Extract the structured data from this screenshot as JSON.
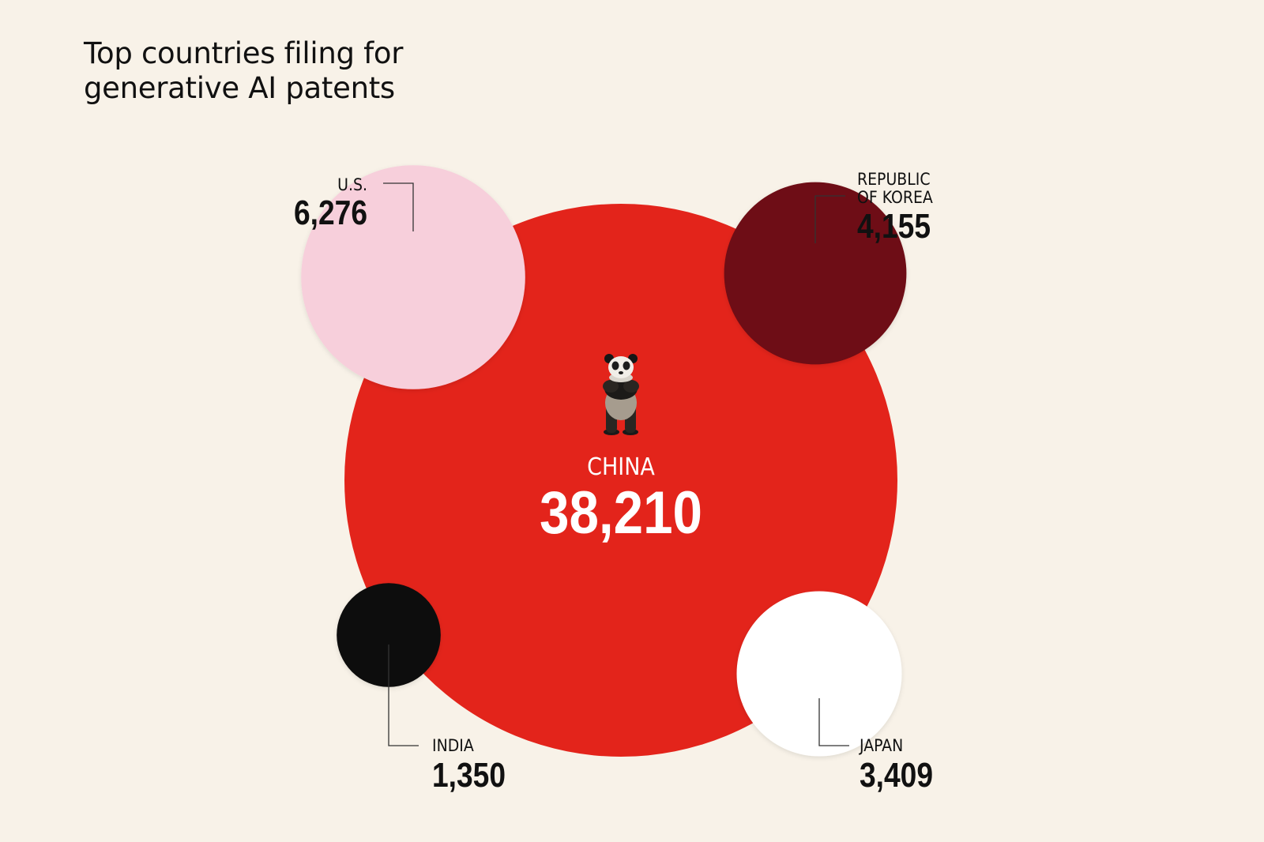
{
  "chart_data": {
    "type": "bubble",
    "title_lines": [
      "Top countries filing for",
      "generative AI patents"
    ],
    "series": [
      {
        "name": "CHINA",
        "name_lines": [
          "CHINA"
        ],
        "value": 38210,
        "value_label": "38,210",
        "color": "#e3241b",
        "icon": "panda-icon"
      },
      {
        "name": "U.S.",
        "name_lines": [
          "U.S."
        ],
        "value": 6276,
        "value_label": "6,276",
        "color": "#f7cfdb"
      },
      {
        "name": "REPUBLIC OF KOREA",
        "name_lines": [
          "REPUBLIC",
          "OF KOREA"
        ],
        "value": 4155,
        "value_label": "4,155",
        "color": "#6e0b12"
      },
      {
        "name": "JAPAN",
        "name_lines": [
          "JAPAN"
        ],
        "value": 3409,
        "value_label": "3,409",
        "color": "#ffffff"
      },
      {
        "name": "INDIA",
        "name_lines": [
          "INDIA"
        ],
        "value": 1350,
        "value_label": "1,350",
        "color": "#0a0a0a"
      }
    ]
  }
}
